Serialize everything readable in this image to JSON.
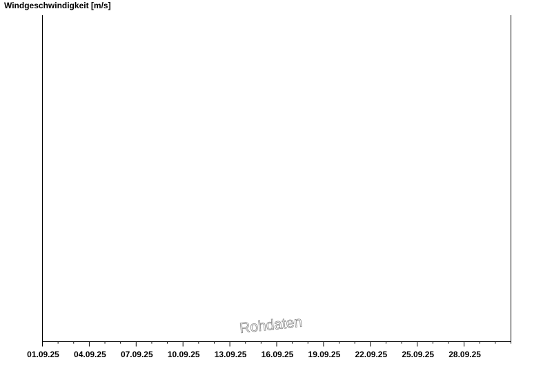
{
  "chart_data": {
    "type": "line",
    "title": "Windgeschwindigkeit [m/s]",
    "xlabel": "",
    "ylabel": "",
    "xlim": [
      "01.09.25",
      "01.10.25"
    ],
    "x_tick_labels": [
      "01.09.25",
      "04.09.25",
      "07.09.25",
      "10.09.25",
      "13.09.25",
      "16.09.25",
      "19.09.25",
      "22.09.25",
      "25.09.25",
      "28.09.25"
    ],
    "minor_ticks": "daily",
    "series": [],
    "grid": false,
    "watermark": "Rohdaten"
  }
}
